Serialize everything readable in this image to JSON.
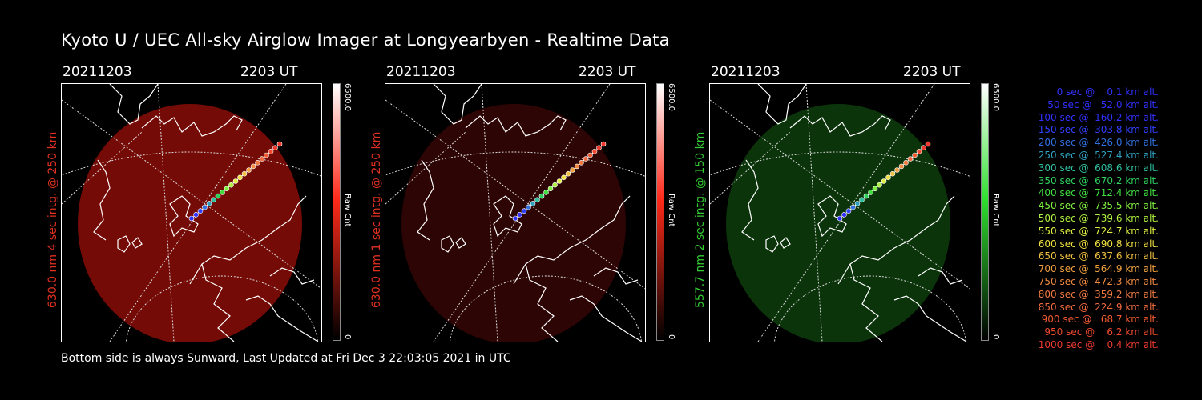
{
  "title": "Kyoto U / UEC All-sky Airglow Imager at Longyearbyen - Realtime Data",
  "footer": "Bottom side is always Sunward, Last Updated at Fri Dec  3 22:03:05 2021 in UTC",
  "panels": [
    {
      "date": "20211203",
      "time": "2203 UT",
      "ylabel": "630.0 nm 4 sec intg. @ 250 km",
      "ylabel_color": "#e03020",
      "cbar_max": "6500.0",
      "cbar_min": "0",
      "cbar_unit": "Raw Cnt",
      "image_color": "#8a0d08",
      "image_opacity": 0.85,
      "colorbar_color": "#ff2a1a"
    },
    {
      "date": "20211203",
      "time": "2203 UT",
      "ylabel": "630.0 nm 1 sec intg. @ 250 km",
      "ylabel_color": "#e03020",
      "cbar_max": "6500.0",
      "cbar_min": "0",
      "cbar_unit": "Raw Cnt",
      "image_color": "#3a0606",
      "image_opacity": 0.8,
      "colorbar_color": "#ff2a1a"
    },
    {
      "date": "20211203",
      "time": "2203 UT",
      "ylabel": "557.7 nm 2 sec intg. @ 150 km",
      "ylabel_color": "#33cc33",
      "cbar_max": "6500.0",
      "cbar_min": "0",
      "cbar_unit": "Raw Cnt",
      "image_color": "#0c3a0c",
      "image_opacity": 0.9,
      "colorbar_color": "#30e030"
    }
  ],
  "legend": [
    {
      "text": "   0 sec @    0.1 km alt.",
      "color": "#3030ff"
    },
    {
      "text": "  50 sec @   52.0 km alt.",
      "color": "#3030ff"
    },
    {
      "text": " 100 sec @  160.2 km alt.",
      "color": "#3030ff"
    },
    {
      "text": " 150 sec @  303.8 km alt.",
      "color": "#3040ff"
    },
    {
      "text": " 200 sec @  426.0 km alt.",
      "color": "#3070e0"
    },
    {
      "text": " 250 sec @  527.4 km alt.",
      "color": "#30a0c0"
    },
    {
      "text": " 300 sec @  608.6 km alt.",
      "color": "#30c0a0"
    },
    {
      "text": " 350 sec @  670.2 km alt.",
      "color": "#30d060"
    },
    {
      "text": " 400 sec @  712.4 km alt.",
      "color": "#40e040"
    },
    {
      "text": " 450 sec @  735.5 km alt.",
      "color": "#80f040"
    },
    {
      "text": " 500 sec @  739.6 km alt.",
      "color": "#b0f040"
    },
    {
      "text": " 550 sec @  724.7 km alt.",
      "color": "#e0f040"
    },
    {
      "text": " 600 sec @  690.8 km alt.",
      "color": "#f0e040"
    },
    {
      "text": " 650 sec @  637.6 km alt.",
      "color": "#f0c040"
    },
    {
      "text": " 700 sec @  564.9 km alt.",
      "color": "#f0a040"
    },
    {
      "text": " 750 sec @  472.3 km alt.",
      "color": "#f08a40"
    },
    {
      "text": " 800 sec @  359.2 km alt.",
      "color": "#f07a40"
    },
    {
      "text": " 850 sec @  224.9 km alt.",
      "color": "#f06a40"
    },
    {
      "text": " 900 sec @   68.7 km alt.",
      "color": "#f05a30"
    },
    {
      "text": " 950 sec @    6.2 km alt.",
      "color": "#f04a30"
    },
    {
      "text": "1000 sec @    0.4 km alt.",
      "color": "#f03a30"
    }
  ],
  "track_colors": [
    "#3030ff",
    "#3030ff",
    "#3040ff",
    "#3070e0",
    "#30a0c0",
    "#30c0a0",
    "#30d060",
    "#40e040",
    "#80f040",
    "#b0f040",
    "#e0f040",
    "#f0e040",
    "#f0c040",
    "#f0a040",
    "#f08a40",
    "#f07a40",
    "#f06a40",
    "#f05a30",
    "#f04a30",
    "#f03a30",
    "#f03a30"
  ]
}
